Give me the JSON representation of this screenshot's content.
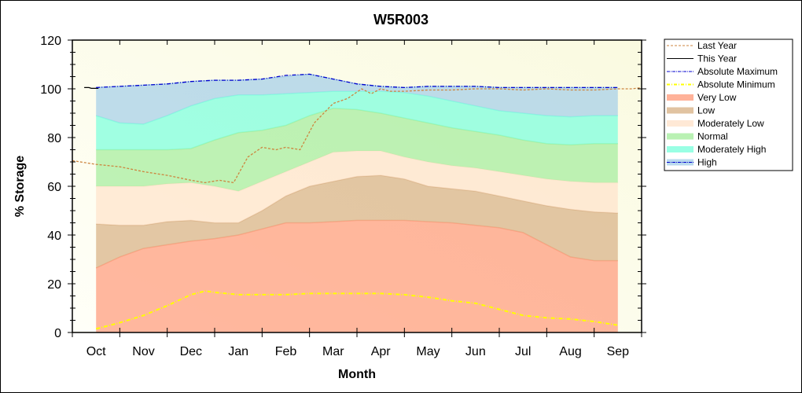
{
  "chart_data": {
    "type": "area",
    "title": "W5R003",
    "xlabel": "Month",
    "ylabel": "% Storage",
    "categories": [
      "Oct",
      "Nov",
      "Dec",
      "Jan",
      "Feb",
      "Mar",
      "Apr",
      "May",
      "Jun",
      "Jul",
      "Aug",
      "Sep"
    ],
    "ylim": [
      0,
      120
    ],
    "yticks": [
      0,
      20,
      40,
      60,
      80,
      100,
      120
    ],
    "legend_position": "right",
    "x": [
      0,
      0.5,
      1,
      1.5,
      2,
      2.5,
      3,
      3.5,
      4,
      4.5,
      5,
      5.5,
      6,
      6.5,
      7,
      7.5,
      8,
      8.5,
      9,
      9.5,
      10,
      10.5,
      11
    ],
    "bands": [
      {
        "name": "Very Low",
        "color": "#ff9f80",
        "lower": [
          0,
          0,
          0,
          0,
          0,
          0,
          0,
          0,
          0,
          0,
          0,
          0,
          0,
          0,
          0,
          0,
          0,
          0,
          0,
          0,
          0,
          0,
          0
        ],
        "upper": [
          26.5,
          31,
          34.5,
          36,
          37.5,
          38.5,
          40,
          42.5,
          45,
          45,
          45.5,
          46,
          46,
          46,
          45.5,
          45,
          44,
          43,
          41,
          36,
          31,
          29.5,
          29.5
        ]
      },
      {
        "name": "Low",
        "color": "#d9b48a",
        "lower": null,
        "upper": [
          44.5,
          44,
          44,
          45.5,
          46,
          45,
          45,
          50,
          56,
          60,
          62,
          64,
          64.5,
          63,
          60,
          59,
          58,
          56,
          54,
          52,
          50.5,
          49.5,
          49
        ]
      },
      {
        "name": "Moderately Low",
        "color": "#ffe4cc",
        "lower": null,
        "upper": [
          60,
          60,
          60,
          61,
          61.5,
          60,
          58,
          62,
          66,
          70,
          74,
          74.5,
          74.5,
          72,
          70,
          68.5,
          67.5,
          66,
          64.5,
          63,
          62,
          61.5,
          61.5
        ]
      },
      {
        "name": "Normal",
        "color": "#a8eea0",
        "lower": null,
        "upper": [
          75,
          75,
          75,
          75,
          75.5,
          79,
          82,
          83,
          85,
          89,
          92,
          91.5,
          90,
          88,
          86,
          84,
          82.5,
          81,
          79,
          77.5,
          77,
          77.5,
          77.5
        ]
      },
      {
        "name": "Moderately High",
        "color": "#80ffdd",
        "lower": null,
        "upper": [
          89,
          86,
          85.5,
          89,
          93,
          96,
          97.5,
          97.5,
          98,
          98.5,
          99,
          99,
          99,
          98.5,
          97,
          95,
          93,
          91,
          90,
          89,
          88.5,
          89,
          89
        ]
      },
      {
        "name": "High",
        "color": "#a8d0e8",
        "lower": null,
        "upper": [
          100.5,
          101,
          101.5,
          102,
          103,
          103.5,
          103.5,
          104,
          105,
          106,
          104,
          102,
          101,
          100.5,
          101,
          101,
          101,
          100.5,
          100.5,
          100.5,
          100.5,
          100.5,
          100.5
        ]
      }
    ],
    "series": [
      {
        "name": "Last Year",
        "style": "dashed",
        "color": "#cd853f",
        "x": [
          -0.5,
          0,
          0.5,
          1,
          1.5,
          2,
          2.3,
          2.6,
          2.9,
          3.2,
          3.5,
          3.8,
          4,
          4.3,
          4.6,
          5,
          5.3,
          5.6,
          5.8,
          6,
          6.2,
          6.5,
          7,
          7.5,
          8,
          8.5,
          9,
          9.5,
          10,
          10.5,
          11,
          11.3,
          11.5
        ],
        "values": [
          70.5,
          69,
          68,
          66,
          64.5,
          62.5,
          61.5,
          62.5,
          61.5,
          72,
          76,
          75,
          76,
          75,
          86,
          94,
          96,
          100,
          98,
          100,
          99,
          99,
          99.5,
          99.5,
          100,
          100,
          99.5,
          100,
          99.5,
          99.5,
          100,
          100,
          100.5
        ]
      },
      {
        "name": "This Year",
        "style": "solid",
        "color": "#000000",
        "x": [
          -0.25,
          -0.15,
          -0.1,
          0.05
        ],
        "values": [
          100.5,
          100.5,
          100.2,
          100.2
        ]
      },
      {
        "name": "Absolute Maximum",
        "style": "dashdot",
        "color": "#0000cd",
        "x": [
          0,
          0.5,
          1,
          1.5,
          2,
          2.5,
          3,
          3.5,
          4,
          4.5,
          5,
          5.5,
          6,
          6.5,
          7,
          7.5,
          8,
          8.5,
          9,
          9.5,
          10,
          10.5,
          11
        ],
        "values": [
          100.5,
          101,
          101.5,
          102,
          103,
          103.5,
          103.5,
          104,
          105.5,
          106,
          104,
          102,
          101,
          100.5,
          101,
          101,
          101,
          100.5,
          100.5,
          100.5,
          100.5,
          100.5,
          100.5
        ]
      },
      {
        "name": "Absolute Minimum",
        "style": "dashdot",
        "color": "#ffff00",
        "x": [
          0,
          0.5,
          1,
          1.5,
          2,
          2.3,
          2.5,
          3,
          3.5,
          4,
          4.5,
          5,
          5.5,
          6,
          6.5,
          7,
          7.5,
          8,
          8.5,
          9,
          9.5,
          10,
          10.5,
          11
        ],
        "values": [
          1.5,
          4,
          7,
          11,
          15.5,
          17,
          16.5,
          15.5,
          15.5,
          15.5,
          16,
          16,
          16,
          16,
          15.5,
          14.5,
          13,
          12,
          9.5,
          7,
          6,
          5.5,
          4.5,
          3
        ]
      }
    ]
  },
  "legend": [
    "Last Year",
    "This Year",
    "Absolute Maximum",
    "Absolute Minimum",
    "Very Low",
    "Low",
    "Moderately Low",
    "Normal",
    "Moderately High",
    "High"
  ]
}
